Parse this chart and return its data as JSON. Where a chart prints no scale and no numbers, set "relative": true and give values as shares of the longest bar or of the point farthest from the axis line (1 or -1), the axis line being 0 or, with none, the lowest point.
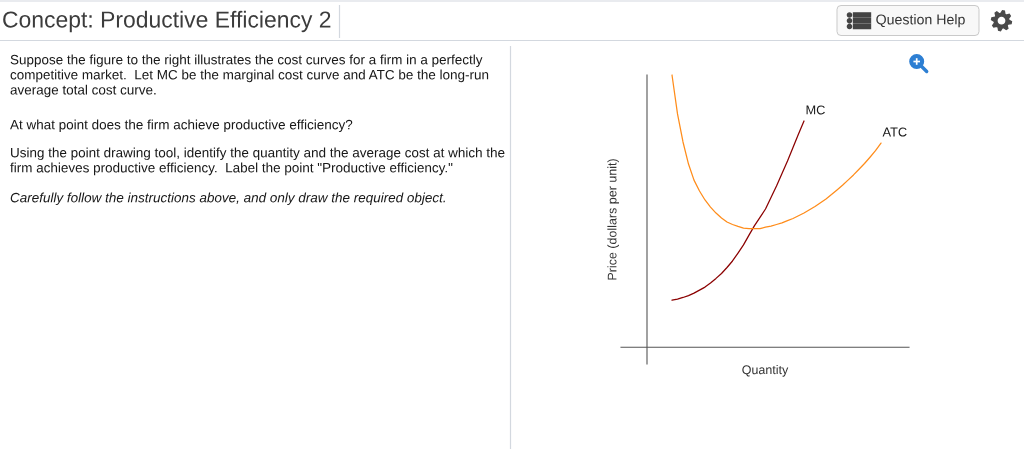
{
  "chart_data": {
    "type": "line",
    "title": "Concept: Productive Efficiency 2",
    "xlabel": "Quantity",
    "ylabel": "Price (dollars per unit)",
    "relative": true,
    "line_style": "solid",
    "categories": [
      null,
      null,
      null,
      null,
      null,
      null,
      null,
      null,
      null,
      null,
      null,
      null,
      null,
      null,
      null,
      null,
      null,
      null,
      null,
      null,
      null,
      null,
      null,
      null,
      null,
      null,
      null,
      null,
      null,
      null,
      null,
      null,
      null,
      null,
      null,
      null,
      null,
      null,
      null
    ],
    "series": [
      {
        "name": "MC",
        "color": "#8b0000",
        "values": [
          0.173,
          0.177,
          0.183,
          0.19,
          0.199,
          0.21,
          0.221,
          0.236,
          0.253,
          0.271,
          0.293,
          0.317,
          0.346,
          0.376,
          0.412,
          0.447,
          0.477,
          0.508,
          0.55,
          0.592,
          0.638,
          0.684,
          0.734,
          0.783,
          0.831,
          null,
          null,
          null,
          null,
          null,
          null,
          null,
          null,
          null,
          null,
          null,
          null,
          null,
          null
        ]
      },
      {
        "name": "ATC",
        "color": "#ff8c1a",
        "values": [
          1.0,
          0.857,
          0.754,
          0.673,
          0.614,
          0.574,
          0.541,
          0.515,
          0.493,
          0.475,
          0.46,
          0.451,
          0.444,
          0.438,
          0.436,
          0.436,
          0.436,
          0.441,
          0.445,
          0.451,
          0.457,
          0.465,
          0.473,
          0.483,
          0.493,
          0.505,
          0.517,
          0.531,
          0.545,
          0.561,
          0.578,
          0.595,
          0.614,
          0.633,
          0.654,
          0.675,
          0.698,
          0.722,
          0.75
        ]
      }
    ],
    "annotations": [
      "Question Help",
      "Suppose the figure to the right illustrates the cost curves for a firm in a perfectly competitive market.  Let MC be the marginal cost curve and ATC be the long-run average total cost curve.",
      "At what point does the firm achieve productive efficiency?",
      "Using the point drawing tool, identify the quantity and the average cost at which the firm achieves productive efficiency.  Label the point \"Productive efficiency.\"",
      "Carefully follow the instructions above, and only draw the required object."
    ]
  }
}
